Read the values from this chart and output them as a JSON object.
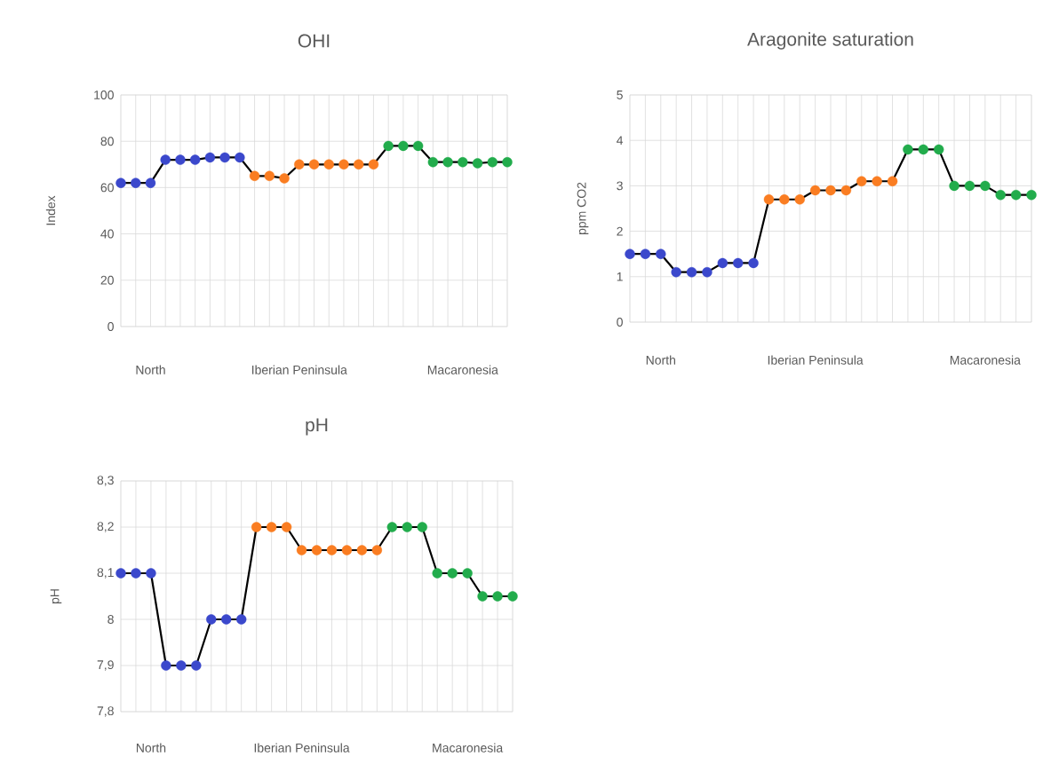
{
  "chart_data": [
    {
      "type": "line",
      "title": "OHI",
      "ylabel": "Index",
      "categories": [
        null,
        null,
        "North",
        null,
        null,
        null,
        null,
        null,
        null,
        null,
        null,
        null,
        "Iberian Peninsula",
        null,
        null,
        null,
        null,
        null,
        null,
        null,
        null,
        null,
        null,
        "Macaronesia",
        null,
        null,
        null
      ],
      "series": [
        {
          "color": "#000000",
          "colors": [
            "#3b48cc",
            "#3b48cc",
            "#3b48cc",
            "#3b48cc",
            "#3b48cc",
            "#3b48cc",
            "#3b48cc",
            "#3b48cc",
            "#3b48cc",
            "#fa7d22",
            "#fa7d22",
            "#fa7d22",
            "#fa7d22",
            "#fa7d22",
            "#fa7d22",
            "#fa7d22",
            "#fa7d22",
            "#fa7d22",
            "#22ac4c",
            "#22ac4c",
            "#22ac4c",
            "#22ac4c",
            "#22ac4c",
            "#22ac4c",
            "#22ac4c",
            "#22ac4c",
            "#22ac4c"
          ],
          "values": [
            62,
            62,
            62,
            72,
            72,
            72,
            73,
            73,
            73,
            65,
            65,
            64,
            70,
            70,
            70,
            70,
            70,
            70,
            78,
            78,
            78,
            71,
            71,
            71,
            70.5,
            71,
            71
          ]
        }
      ],
      "ylim": [
        0,
        100
      ],
      "yticks": [
        0,
        20,
        40,
        60,
        80,
        100
      ],
      "grid": true,
      "marker": "circle",
      "line_style": "solid"
    },
    {
      "type": "line",
      "title": "Aragonite saturation",
      "ylabel": "ppm CO2",
      "categories": [
        null,
        null,
        "North",
        null,
        null,
        null,
        null,
        null,
        null,
        null,
        null,
        null,
        "Iberian Peninsula",
        null,
        null,
        null,
        null,
        null,
        null,
        null,
        null,
        null,
        null,
        "Macaronesia",
        null,
        null,
        null
      ],
      "series": [
        {
          "color": "#000000",
          "colors": [
            "#3b48cc",
            "#3b48cc",
            "#3b48cc",
            "#3b48cc",
            "#3b48cc",
            "#3b48cc",
            "#3b48cc",
            "#3b48cc",
            "#3b48cc",
            "#fa7d22",
            "#fa7d22",
            "#fa7d22",
            "#fa7d22",
            "#fa7d22",
            "#fa7d22",
            "#fa7d22",
            "#fa7d22",
            "#fa7d22",
            "#22ac4c",
            "#22ac4c",
            "#22ac4c",
            "#22ac4c",
            "#22ac4c",
            "#22ac4c",
            "#22ac4c",
            "#22ac4c",
            "#22ac4c"
          ],
          "values": [
            1.5,
            1.5,
            1.5,
            1.1,
            1.1,
            1.1,
            1.3,
            1.3,
            1.3,
            2.7,
            2.7,
            2.7,
            2.9,
            2.9,
            2.9,
            3.1,
            3.1,
            3.1,
            3.8,
            3.8,
            3.8,
            3.0,
            3.0,
            3.0,
            2.8,
            2.8,
            2.8
          ]
        }
      ],
      "ylim": [
        0,
        5
      ],
      "yticks": [
        0,
        1,
        2,
        3,
        4,
        5
      ],
      "grid": true,
      "marker": "circle",
      "line_style": "solid"
    },
    {
      "type": "line",
      "title": "pH",
      "ylabel": "pH",
      "categories": [
        null,
        null,
        "North",
        null,
        null,
        null,
        null,
        null,
        null,
        null,
        null,
        null,
        "Iberian Peninsula",
        null,
        null,
        null,
        null,
        null,
        null,
        null,
        null,
        null,
        null,
        "Macaronesia",
        null,
        null,
        null
      ],
      "series": [
        {
          "color": "#000000",
          "colors": [
            "#3b48cc",
            "#3b48cc",
            "#3b48cc",
            "#3b48cc",
            "#3b48cc",
            "#3b48cc",
            "#3b48cc",
            "#3b48cc",
            "#3b48cc",
            "#fa7d22",
            "#fa7d22",
            "#fa7d22",
            "#fa7d22",
            "#fa7d22",
            "#fa7d22",
            "#fa7d22",
            "#fa7d22",
            "#fa7d22",
            "#22ac4c",
            "#22ac4c",
            "#22ac4c",
            "#22ac4c",
            "#22ac4c",
            "#22ac4c",
            "#22ac4c",
            "#22ac4c",
            "#22ac4c"
          ],
          "values": [
            8.1,
            8.1,
            8.1,
            7.9,
            7.9,
            7.9,
            8.0,
            8.0,
            8.0,
            8.2,
            8.2,
            8.2,
            8.15,
            8.15,
            8.15,
            8.15,
            8.15,
            8.15,
            8.2,
            8.2,
            8.2,
            8.1,
            8.1,
            8.1,
            8.05,
            8.05,
            8.05
          ]
        }
      ],
      "ylim": [
        7.8,
        8.3
      ],
      "yticks": [
        {
          "value": 7.8,
          "label": "7,8"
        },
        {
          "value": 7.9,
          "label": "7,9"
        },
        8,
        {
          "value": 8.1,
          "label": "8,1"
        },
        {
          "value": 8.2,
          "label": "8,2"
        },
        {
          "value": 8.3,
          "label": "8,3"
        }
      ],
      "grid": true,
      "marker": "circle",
      "line_style": "solid"
    }
  ]
}
